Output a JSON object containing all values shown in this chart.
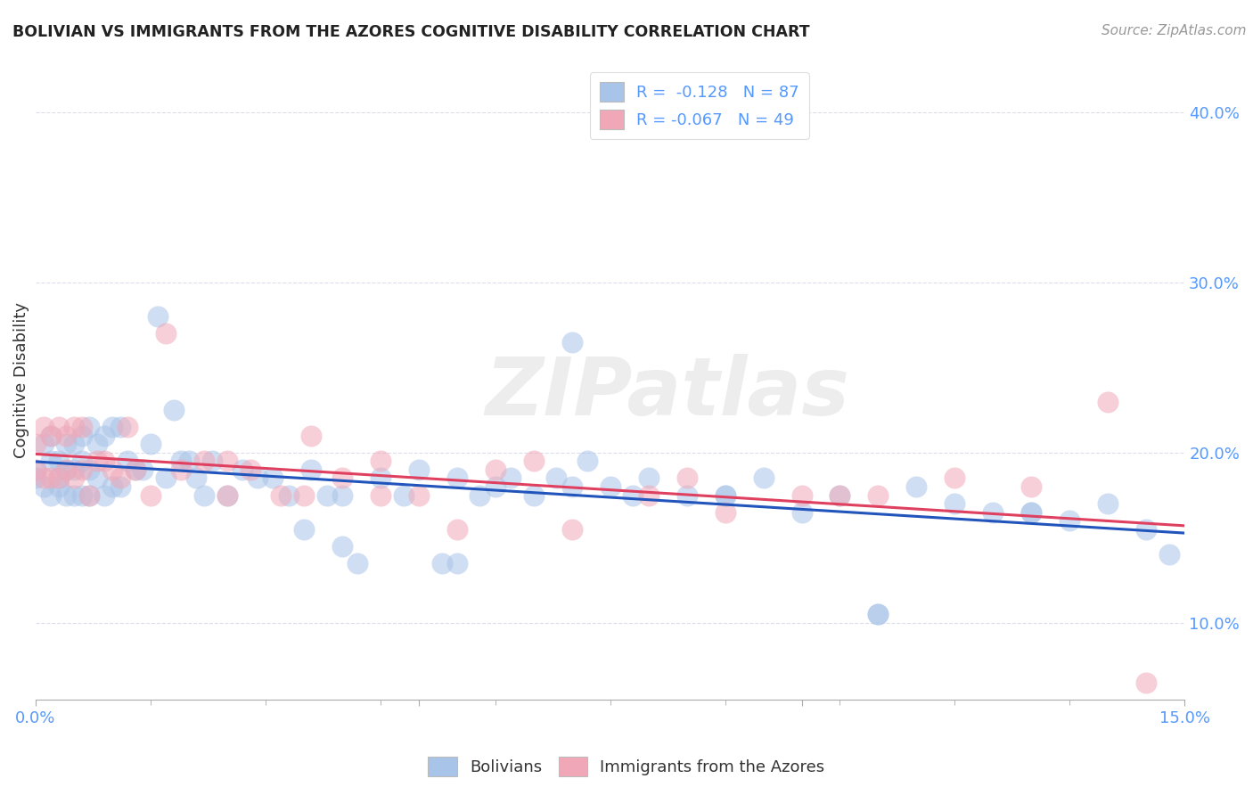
{
  "title": "BOLIVIAN VS IMMIGRANTS FROM THE AZORES COGNITIVE DISABILITY CORRELATION CHART",
  "source": "Source: ZipAtlas.com",
  "ylabel": "Cognitive Disability",
  "y_ticks": [
    0.1,
    0.2,
    0.3,
    0.4
  ],
  "y_tick_labels_right": [
    "10.0%",
    "20.0%",
    "30.0%",
    "40.0%"
  ],
  "xlim": [
    0.0,
    0.15
  ],
  "ylim": [
    0.055,
    0.43
  ],
  "color_blue": "#A8C4E8",
  "color_pink": "#F0A8B8",
  "line_color_blue": "#2255BB",
  "line_color_pink": "#E04060",
  "watermark": "ZIPatlas",
  "legend_label1": "R =  -0.128   N = 87",
  "legend_label2": "R = -0.067   N = 49",
  "tick_color": "#5599FF",
  "title_color": "#222222",
  "grid_color": "#DDDDEE",
  "bolivians_x": [
    0.0,
    0.0,
    0.001,
    0.001,
    0.002,
    0.002,
    0.002,
    0.003,
    0.003,
    0.003,
    0.004,
    0.004,
    0.004,
    0.005,
    0.005,
    0.005,
    0.006,
    0.006,
    0.006,
    0.007,
    0.007,
    0.007,
    0.008,
    0.008,
    0.009,
    0.009,
    0.01,
    0.01,
    0.011,
    0.011,
    0.012,
    0.013,
    0.014,
    0.015,
    0.016,
    0.017,
    0.018,
    0.019,
    0.02,
    0.021,
    0.022,
    0.023,
    0.025,
    0.027,
    0.029,
    0.031,
    0.033,
    0.036,
    0.038,
    0.04,
    0.042,
    0.045,
    0.048,
    0.05,
    0.053,
    0.055,
    0.058,
    0.06,
    0.062,
    0.065,
    0.068,
    0.07,
    0.072,
    0.075,
    0.078,
    0.08,
    0.085,
    0.09,
    0.095,
    0.1,
    0.105,
    0.11,
    0.115,
    0.12,
    0.125,
    0.13,
    0.135,
    0.14,
    0.145,
    0.148,
    0.035,
    0.04,
    0.055,
    0.07,
    0.09,
    0.11,
    0.13
  ],
  "bolivians_y": [
    0.19,
    0.185,
    0.205,
    0.18,
    0.21,
    0.195,
    0.175,
    0.195,
    0.185,
    0.18,
    0.205,
    0.19,
    0.175,
    0.205,
    0.19,
    0.175,
    0.21,
    0.195,
    0.175,
    0.215,
    0.19,
    0.175,
    0.205,
    0.185,
    0.21,
    0.175,
    0.215,
    0.18,
    0.215,
    0.18,
    0.195,
    0.19,
    0.19,
    0.205,
    0.28,
    0.185,
    0.225,
    0.195,
    0.195,
    0.185,
    0.175,
    0.195,
    0.175,
    0.19,
    0.185,
    0.185,
    0.175,
    0.19,
    0.175,
    0.175,
    0.135,
    0.185,
    0.175,
    0.19,
    0.135,
    0.185,
    0.175,
    0.18,
    0.185,
    0.175,
    0.185,
    0.18,
    0.195,
    0.18,
    0.175,
    0.185,
    0.175,
    0.175,
    0.185,
    0.165,
    0.175,
    0.105,
    0.18,
    0.17,
    0.165,
    0.165,
    0.16,
    0.17,
    0.155,
    0.14,
    0.155,
    0.145,
    0.135,
    0.265,
    0.175,
    0.105,
    0.165
  ],
  "azores_x": [
    0.0,
    0.0,
    0.001,
    0.001,
    0.002,
    0.002,
    0.003,
    0.003,
    0.004,
    0.004,
    0.005,
    0.005,
    0.006,
    0.006,
    0.007,
    0.008,
    0.009,
    0.01,
    0.011,
    0.012,
    0.013,
    0.015,
    0.017,
    0.019,
    0.022,
    0.025,
    0.028,
    0.032,
    0.036,
    0.04,
    0.045,
    0.05,
    0.055,
    0.06,
    0.065,
    0.07,
    0.08,
    0.09,
    0.1,
    0.11,
    0.12,
    0.13,
    0.14,
    0.025,
    0.035,
    0.045,
    0.085,
    0.105,
    0.145
  ],
  "azores_y": [
    0.205,
    0.19,
    0.215,
    0.185,
    0.21,
    0.185,
    0.215,
    0.185,
    0.21,
    0.19,
    0.215,
    0.185,
    0.215,
    0.19,
    0.175,
    0.195,
    0.195,
    0.19,
    0.185,
    0.215,
    0.19,
    0.175,
    0.27,
    0.19,
    0.195,
    0.175,
    0.19,
    0.175,
    0.21,
    0.185,
    0.195,
    0.175,
    0.155,
    0.19,
    0.195,
    0.155,
    0.175,
    0.165,
    0.175,
    0.175,
    0.185,
    0.18,
    0.23,
    0.195,
    0.175,
    0.175,
    0.185,
    0.175,
    0.065
  ]
}
